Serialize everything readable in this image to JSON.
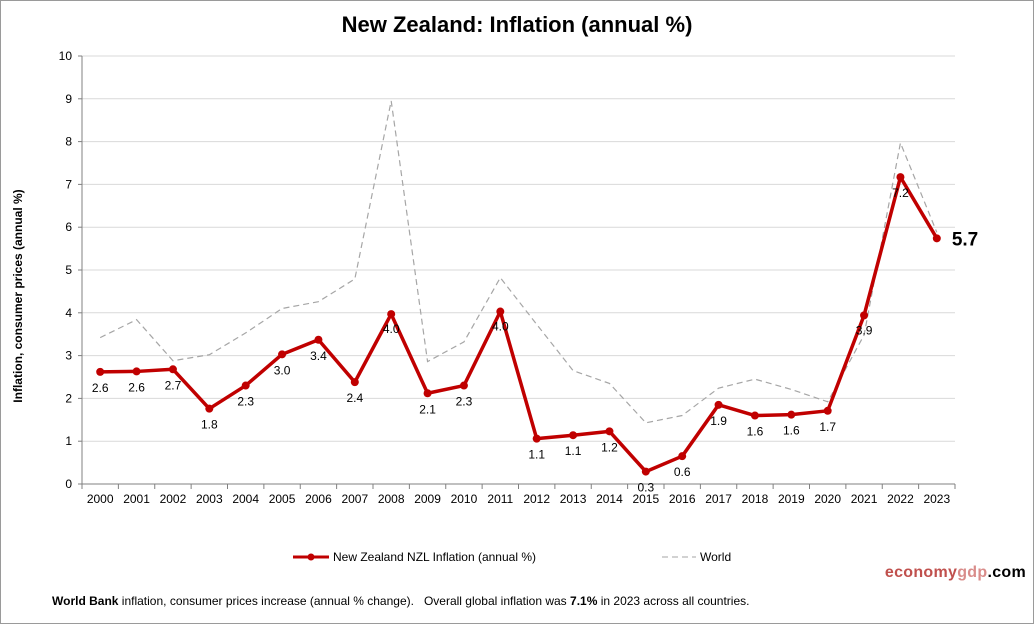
{
  "chart_data": {
    "type": "line",
    "title": "New Zealand: Inflation (annual %)",
    "ylabel": "Inflation, consumer prices (annual %)",
    "xlabel": "",
    "ylim": [
      0,
      10
    ],
    "yticks": [
      "0",
      "1",
      "2",
      "3",
      "4",
      "5",
      "6",
      "7",
      "8",
      "9",
      "10"
    ],
    "grid": true,
    "legend_position": "bottom",
    "categories": [
      "2000",
      "2001",
      "2002",
      "2003",
      "2004",
      "2005",
      "2006",
      "2007",
      "2008",
      "2009",
      "2010",
      "2011",
      "2012",
      "2013",
      "2014",
      "2015",
      "2016",
      "2017",
      "2018",
      "2019",
      "2020",
      "2021",
      "2022",
      "2023"
    ],
    "series": [
      {
        "name": "New Zealand NZL Inflation (annual %)",
        "color": "#c00000",
        "values": [
          2.62,
          2.63,
          2.68,
          1.76,
          2.3,
          3.03,
          3.37,
          2.38,
          3.97,
          2.12,
          2.3,
          4.03,
          1.06,
          1.14,
          1.23,
          0.29,
          0.65,
          1.85,
          1.6,
          1.62,
          1.71,
          3.94,
          7.17,
          5.74
        ],
        "labels": [
          "2.6",
          "2.6",
          "2.7",
          "1.8",
          "2.3",
          "3.0",
          "3.4",
          "2.4",
          "4.0",
          "2.1",
          "2.3",
          "4.0",
          "1.1",
          "1.1",
          "1.2",
          "0.3",
          "0.6",
          "1.9",
          "1.6",
          "1.6",
          "1.7",
          "3.9",
          "7.2",
          "5.7"
        ]
      },
      {
        "name": "World",
        "color": "#a6a6a6",
        "values": [
          3.42,
          3.84,
          2.88,
          3.02,
          3.53,
          4.1,
          4.26,
          4.79,
          8.95,
          2.86,
          3.32,
          4.82,
          3.73,
          2.65,
          2.35,
          1.43,
          1.6,
          2.24,
          2.45,
          2.21,
          1.92,
          3.48,
          7.97,
          5.88
        ]
      }
    ],
    "last_value_label": "5.7"
  },
  "brand": {
    "part1": "economy",
    "part2": "gdp",
    "part3": ".com"
  },
  "footnote": {
    "source": "World Bank",
    "text1": " inflation, consumer prices increase (annual % change).   Overall global inflation was ",
    "value": "7.1%",
    "text2": " in 2023 across all countries."
  }
}
